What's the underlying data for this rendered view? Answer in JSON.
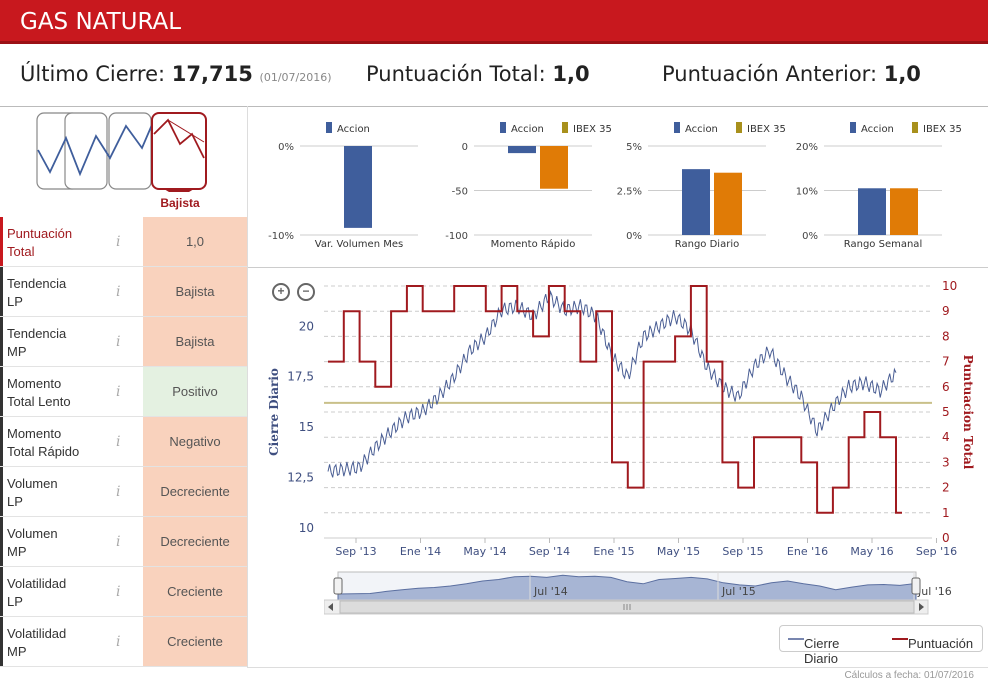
{
  "header": {
    "title": "GAS NATURAL"
  },
  "summary": {
    "last_close_label": "Último Cierre:",
    "last_close_value": "17,715",
    "last_close_date": "(01/07/2016)",
    "score_label": "Puntuación Total:",
    "score_value": "1,0",
    "prev_score_label": "Puntuación Anterior:",
    "prev_score_value": "1,0"
  },
  "trend_badge": "Bajista",
  "rows": [
    {
      "label1": "Puntuación",
      "label2": "Total",
      "value": "1,0",
      "style": "red",
      "info": "i"
    },
    {
      "label1": "Tendencia",
      "label2": "LP",
      "value": "Bajista",
      "style": "red",
      "info": "i"
    },
    {
      "label1": "Tendencia",
      "label2": "MP",
      "value": "Bajista",
      "style": "red",
      "info": "i"
    },
    {
      "label1": "Momento",
      "label2": "Total Lento",
      "value": "Positivo",
      "style": "green",
      "info": "i"
    },
    {
      "label1": "Momento",
      "label2": "Total Rápido",
      "value": "Negativo",
      "style": "red",
      "info": "i"
    },
    {
      "label1": "Volumen",
      "label2": "LP",
      "value": "Decreciente",
      "style": "red",
      "info": "i"
    },
    {
      "label1": "Volumen",
      "label2": "MP",
      "value": "Decreciente",
      "style": "red",
      "info": "i"
    },
    {
      "label1": "Volatilidad",
      "label2": "LP",
      "value": "Creciente",
      "style": "red",
      "info": "i"
    },
    {
      "label1": "Volatilidad",
      "label2": "MP",
      "value": "Creciente",
      "style": "red",
      "info": "i"
    }
  ],
  "colors": {
    "accion": "#3f5e9c",
    "ibex": "#e07b06",
    "ibex_legend": "#a8901c",
    "score": "#a01a1f",
    "close": "#4a5e94",
    "avg_line": "#c9c08a"
  },
  "chart_data": [
    {
      "type": "bar",
      "title": "Var. Volumen Mes",
      "series": [
        {
          "name": "Accion",
          "values": [
            -9.2
          ]
        }
      ],
      "ylim": [
        -10,
        0
      ],
      "ticks": [
        "0%",
        "-10%"
      ]
    },
    {
      "type": "bar",
      "title": "Momento Rápido",
      "series": [
        {
          "name": "Accion",
          "values": [
            -8
          ]
        },
        {
          "name": "IBEX 35",
          "values": [
            -48
          ]
        }
      ],
      "ylim": [
        -100,
        0
      ],
      "ticks": [
        "0",
        "-50",
        "-100"
      ]
    },
    {
      "type": "bar",
      "title": "Rango Diario",
      "series": [
        {
          "name": "Accion",
          "values": [
            3.7
          ]
        },
        {
          "name": "IBEX 35",
          "values": [
            3.5
          ]
        }
      ],
      "ylim": [
        0,
        5
      ],
      "ticks": [
        "5%",
        "2.5%",
        "0%"
      ]
    },
    {
      "type": "bar",
      "title": "Rango Semanal",
      "series": [
        {
          "name": "Accion",
          "values": [
            10.5
          ]
        },
        {
          "name": "IBEX 35",
          "values": [
            10.5
          ]
        }
      ],
      "ylim": [
        0,
        20
      ],
      "ticks": [
        "20%",
        "10%",
        "0%"
      ]
    },
    {
      "type": "line",
      "xlabel": "",
      "ylabel": "Cierre Diario",
      "y2label": "Puntuacion Total",
      "x_ticks": [
        "Sep '13",
        "Ene '14",
        "May '14",
        "Sep '14",
        "Ene '15",
        "May '15",
        "Sep '15",
        "Ene '16",
        "May '16",
        "Sep '16"
      ],
      "y_ticks": [
        "20",
        "17,5",
        "15",
        "12,5",
        "10"
      ],
      "y2_ticks": [
        "10",
        "9",
        "8",
        "7",
        "6",
        "5",
        "4",
        "3",
        "2",
        "1",
        "0"
      ],
      "ylim": [
        9.5,
        22
      ],
      "y2lim": [
        0,
        10
      ],
      "reference_line": 16.2,
      "series": [
        {
          "name": "Cierre Diario",
          "x": [
            "2013-07",
            "2013-08",
            "2013-09",
            "2013-10",
            "2013-11",
            "2013-12",
            "2014-01",
            "2014-02",
            "2014-03",
            "2014-04",
            "2014-05",
            "2014-06",
            "2014-07",
            "2014-08",
            "2014-09",
            "2014-10",
            "2014-11",
            "2014-12",
            "2015-01",
            "2015-02",
            "2015-03",
            "2015-04",
            "2015-05",
            "2015-06",
            "2015-07",
            "2015-08",
            "2015-09",
            "2015-10",
            "2015-11",
            "2015-12",
            "2016-01",
            "2016-02",
            "2016-03",
            "2016-04",
            "2016-05",
            "2016-06",
            "2016-07"
          ],
          "values": [
            12.8,
            12.9,
            13.0,
            14.0,
            14.8,
            15.5,
            15.8,
            16.5,
            17.5,
            18.8,
            19.5,
            20.8,
            21.0,
            20.5,
            21.5,
            20.8,
            21.0,
            20.5,
            18.5,
            17.5,
            19.5,
            20.0,
            20.5,
            19.8,
            18.0,
            17.0,
            16.5,
            18.0,
            18.8,
            17.5,
            16.5,
            14.8,
            16.0,
            17.0,
            17.2,
            16.8,
            17.7
          ]
        },
        {
          "name": "Puntuación",
          "x": [
            "2013-07",
            "2013-08",
            "2013-09",
            "2013-10",
            "2013-11",
            "2013-12",
            "2014-01",
            "2014-02",
            "2014-03",
            "2014-04",
            "2014-05",
            "2014-06",
            "2014-07",
            "2014-08",
            "2014-09",
            "2014-10",
            "2014-11",
            "2014-12",
            "2015-01",
            "2015-02",
            "2015-03",
            "2015-04",
            "2015-05",
            "2015-06",
            "2015-07",
            "2015-08",
            "2015-09",
            "2015-10",
            "2015-11",
            "2015-12",
            "2016-01",
            "2016-02",
            "2016-03",
            "2016-04",
            "2016-05",
            "2016-06",
            "2016-07"
          ],
          "values": [
            7,
            9,
            7,
            6,
            9,
            10,
            9,
            9,
            10,
            10,
            9,
            10,
            9,
            8,
            10,
            9,
            7,
            9,
            3,
            2,
            7,
            7,
            8,
            10,
            7,
            3,
            2,
            4,
            4,
            4,
            3,
            1,
            2,
            4,
            5,
            4,
            1
          ]
        }
      ]
    }
  ],
  "navigator": {
    "labels": [
      "Jul '14",
      "Jul '15",
      "Jul '16"
    ]
  },
  "legend": {
    "close": "Cierre Diario",
    "score": "Puntuación"
  },
  "footer": {
    "note": "Cálculos a fecha: 01/07/2016"
  }
}
